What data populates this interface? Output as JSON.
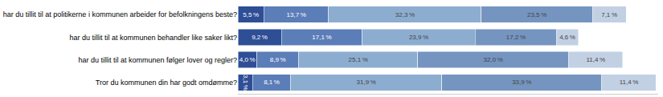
{
  "chart_data": {
    "type": "bar",
    "orientation": "horizontal",
    "stacked": true,
    "data_labels": true,
    "tick_labels": "y",
    "categories": [
      "har du tillit til at politikerne i kommunen arbeider for befolkningens beste?",
      "har du tillit til at kommunen behandler like saker likt?",
      "har du tillit til at kommunen følger lover og regler?",
      "Tror du kommunen din har godt omdømme?"
    ],
    "series": [
      {
        "color": "#2e4e96",
        "values": [
          5.5,
          9.2,
          4.0,
          3.1
        ],
        "value_labels": [
          "5,5 %",
          "9,2 %",
          "4,0 %",
          "3,1 %"
        ]
      },
      {
        "color": "#5b7db8",
        "values": [
          13.7,
          17.1,
          8.9,
          8.1
        ],
        "value_labels": [
          "13,7 %",
          "17,1 %",
          "8,9 %",
          "8,1 %"
        ]
      },
      {
        "color": "#8dadd0",
        "values": [
          32.3,
          23.9,
          25.1,
          31.9
        ],
        "value_labels": [
          "32,3 %",
          "23,9 %",
          "25,1 %",
          "31,9 %"
        ]
      },
      {
        "color": "#7595c0",
        "values": [
          23.5,
          17.2,
          32.0,
          33.9
        ],
        "value_labels": [
          "23,5 %",
          "17,2 %",
          "32,0 %",
          "33,9 %"
        ]
      },
      {
        "color": "#c2d0e4",
        "values": [
          7.1,
          4.6,
          11.4,
          11.4
        ],
        "value_labels": [
          "7,1 %",
          "4,6 %",
          "11,4 %",
          "11,4 %"
        ]
      }
    ],
    "xlim": [
      0,
      88.9
    ],
    "xticks": [],
    "grid": false
  }
}
